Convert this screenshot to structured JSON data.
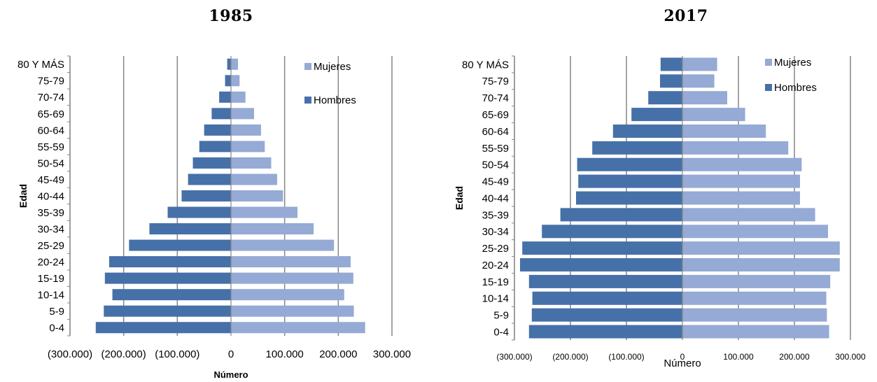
{
  "chart_data": [
    {
      "type": "bar",
      "orientation": "horizontal",
      "title": "1985",
      "xlabel": "Número",
      "ylabel": "Edad",
      "xlim": [
        -300000,
        300000
      ],
      "xticks": [
        -300000,
        -200000,
        -100000,
        0,
        100000,
        200000,
        300000
      ],
      "xtick_labels": [
        "(300.000)",
        "(200.000)",
        "(100.000)",
        "0",
        "100.000",
        "200.000",
        "300.000"
      ],
      "grid": "vertical",
      "legend_position": "top-right",
      "categories": [
        "0-4",
        "5-9",
        "10-14",
        "15-19",
        "20-24",
        "25-29",
        "30-34",
        "35-39",
        "40-44",
        "45-49",
        "50-54",
        "55-59",
        "60-64",
        "65-69",
        "70-74",
        "75-79",
        "80 Y MÁS"
      ],
      "series": [
        {
          "name": "Mujeres",
          "color": "#95aad4",
          "values": [
            250000,
            229000,
            211000,
            228000,
            223000,
            192000,
            154000,
            124000,
            97000,
            86000,
            75000,
            63000,
            56000,
            43000,
            27000,
            16000,
            13000
          ]
        },
        {
          "name": "Hombres",
          "color": "#4670a8",
          "values": [
            -252000,
            -237000,
            -221000,
            -235000,
            -227000,
            -190000,
            -152000,
            -118000,
            -92000,
            -80000,
            -71000,
            -59000,
            -50000,
            -36000,
            -22000,
            -11000,
            -7000
          ]
        }
      ]
    },
    {
      "type": "bar",
      "orientation": "horizontal",
      "title": "2017",
      "xlabel": "Número",
      "ylabel": "Edad",
      "xlim": [
        -300000,
        300000
      ],
      "xticks": [
        -300000,
        -200000,
        -100000,
        0,
        100000,
        200000,
        300000
      ],
      "xtick_labels": [
        "(300.000)",
        "(200.000)",
        "(100.000)",
        "0",
        "100.000",
        "200.000",
        "300.000"
      ],
      "grid": "vertical",
      "legend_position": "top-right",
      "categories": [
        "0-4",
        "5-9",
        "10-14",
        "15-19",
        "20-24",
        "25-29",
        "30-34",
        "35-39",
        "40-44",
        "45-49",
        "50-54",
        "55-59",
        "60-64",
        "65-69",
        "70-74",
        "75-79",
        "80 Y MÁS"
      ],
      "series": [
        {
          "name": "Mujeres",
          "color": "#95aad4",
          "values": [
            262000,
            258000,
            257000,
            264000,
            281000,
            281000,
            260000,
            237000,
            210000,
            210000,
            213000,
            189000,
            149000,
            112000,
            80000,
            57000,
            62000
          ]
        },
        {
          "name": "Hombres",
          "color": "#4670a8",
          "values": [
            -274000,
            -269000,
            -268000,
            -274000,
            -290000,
            -286000,
            -251000,
            -218000,
            -190000,
            -186000,
            -188000,
            -161000,
            -124000,
            -91000,
            -61000,
            -40000,
            -39000
          ]
        }
      ]
    }
  ]
}
